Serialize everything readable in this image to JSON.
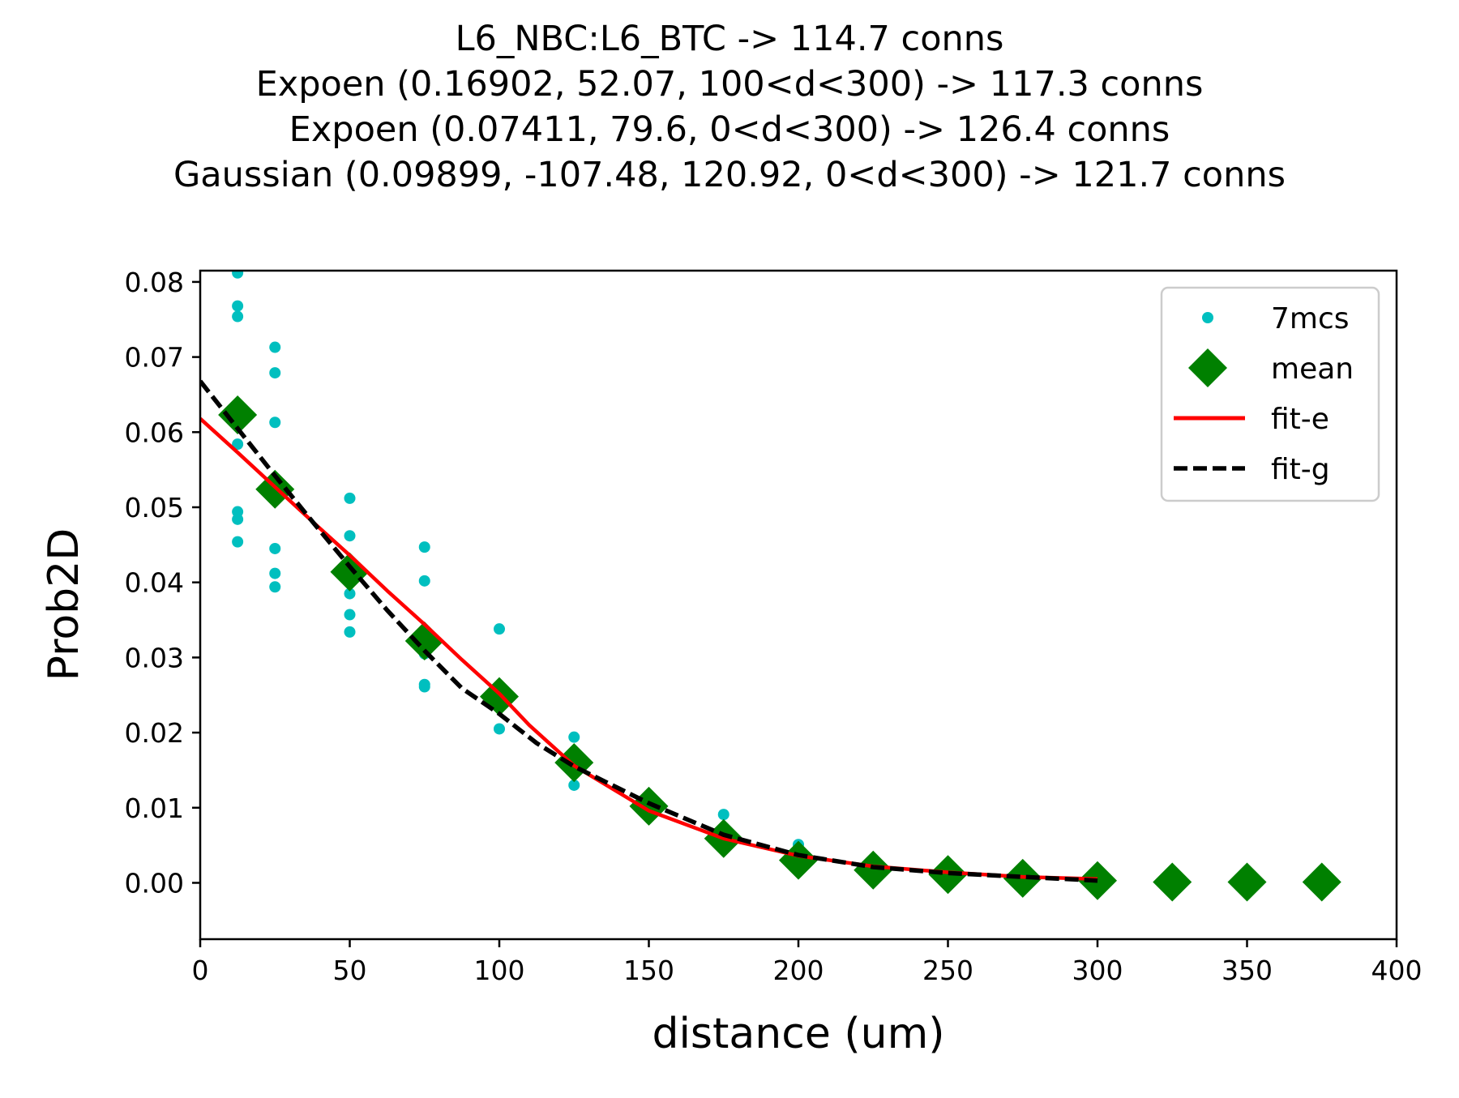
{
  "chart_data": {
    "type": "scatter",
    "title_lines": [
      "L6_NBC:L6_BTC -> 114.7 conns",
      "Expoen (0.16902, 52.07, 100<d<300) -> 117.3 conns",
      "Expoen (0.07411, 79.6, 0<d<300) -> 126.4 conns",
      "Gaussian (0.09899, -107.48, 120.92, 0<d<300) -> 121.7 conns"
    ],
    "xlabel": "distance (um)",
    "ylabel": "Prob2D",
    "xlim": [
      0,
      400
    ],
    "ylim": [
      -0.0075,
      0.0815
    ],
    "xticks": [
      0,
      50,
      100,
      150,
      200,
      250,
      300,
      350,
      400
    ],
    "xtick_labels": [
      "0",
      "50",
      "100",
      "150",
      "200",
      "250",
      "300",
      "350",
      "400"
    ],
    "yticks": [
      0.0,
      0.01,
      0.02,
      0.03,
      0.04,
      0.05,
      0.06,
      0.07,
      0.08
    ],
    "ytick_labels": [
      "0.00",
      "0.01",
      "0.02",
      "0.03",
      "0.04",
      "0.05",
      "0.06",
      "0.07",
      "0.08"
    ],
    "grid": false,
    "legend_position": "top-right",
    "series": [
      {
        "name": "7mcs",
        "kind": "points",
        "color": "#00bfbf",
        "points": [
          [
            12.5,
            0.0812
          ],
          [
            12.5,
            0.0768
          ],
          [
            12.5,
            0.0754
          ],
          [
            12.5,
            0.0584
          ],
          [
            12.5,
            0.0494
          ],
          [
            12.5,
            0.0484
          ],
          [
            12.5,
            0.0454
          ],
          [
            25,
            0.0713
          ],
          [
            25,
            0.0679
          ],
          [
            25,
            0.0613
          ],
          [
            25,
            0.0445
          ],
          [
            25,
            0.0412
          ],
          [
            25,
            0.0394
          ],
          [
            50,
            0.0512
          ],
          [
            50,
            0.0462
          ],
          [
            50,
            0.0385
          ],
          [
            50,
            0.0357
          ],
          [
            50,
            0.0334
          ],
          [
            75,
            0.0447
          ],
          [
            75,
            0.0402
          ],
          [
            75,
            0.0305
          ],
          [
            75,
            0.0264
          ],
          [
            75,
            0.0261
          ],
          [
            100,
            0.0338
          ],
          [
            100,
            0.0205
          ],
          [
            125,
            0.0194
          ],
          [
            125,
            0.013
          ],
          [
            175,
            0.0091
          ],
          [
            200,
            0.0051
          ]
        ]
      },
      {
        "name": "mean",
        "kind": "markers",
        "color": "#008000",
        "points": [
          [
            12.5,
            0.0623
          ],
          [
            25,
            0.0524
          ],
          [
            50,
            0.0414
          ],
          [
            75,
            0.0322
          ],
          [
            100,
            0.0248
          ],
          [
            125,
            0.016
          ],
          [
            150,
            0.0102
          ],
          [
            175,
            0.0059
          ],
          [
            200,
            0.003
          ],
          [
            225,
            0.0017
          ],
          [
            250,
            0.0011
          ],
          [
            275,
            0.0006
          ],
          [
            300,
            0.0003
          ],
          [
            325,
            0.0001
          ],
          [
            350,
            0.0001
          ],
          [
            375,
            0.0001
          ]
        ]
      },
      {
        "name": "fit-e",
        "kind": "line",
        "color": "#ff0000",
        "points": [
          [
            0,
            0.0618
          ],
          [
            12.5,
            0.0573
          ],
          [
            25,
            0.0527
          ],
          [
            37.5,
            0.0481
          ],
          [
            50,
            0.0436
          ],
          [
            62.5,
            0.0389
          ],
          [
            75,
            0.0344
          ],
          [
            87.5,
            0.0297
          ],
          [
            100,
            0.0252
          ],
          [
            110,
            0.021
          ],
          [
            125,
            0.0156
          ],
          [
            150,
            0.0096
          ],
          [
            175,
            0.0059
          ],
          [
            200,
            0.0036
          ],
          [
            225,
            0.0022
          ],
          [
            250,
            0.0014
          ],
          [
            275,
            0.0008
          ],
          [
            300,
            0.0005
          ]
        ]
      },
      {
        "name": "fit-g",
        "kind": "dashed-line",
        "color": "#000000",
        "points": [
          [
            0,
            0.0668
          ],
          [
            12.5,
            0.0605
          ],
          [
            25,
            0.0542
          ],
          [
            37.5,
            0.0481
          ],
          [
            50,
            0.0421
          ],
          [
            62.5,
            0.0363
          ],
          [
            75,
            0.0309
          ],
          [
            87.5,
            0.0259
          ],
          [
            100,
            0.0225
          ],
          [
            112.5,
            0.0186
          ],
          [
            125,
            0.0155
          ],
          [
            150,
            0.0106
          ],
          [
            175,
            0.0064
          ],
          [
            200,
            0.0037
          ],
          [
            225,
            0.0021
          ],
          [
            250,
            0.0013
          ],
          [
            275,
            0.0008
          ],
          [
            300,
            0.0003
          ]
        ]
      }
    ]
  }
}
